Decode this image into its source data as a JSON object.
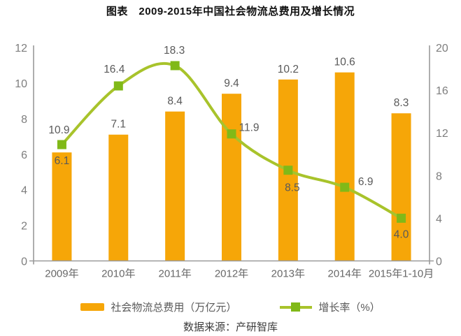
{
  "source": "数据来源：产研智库",
  "colors": {
    "bar": "#F6A608",
    "line": "#A8C32B",
    "marker": "#80B918",
    "axis": "#9A9A9A",
    "tick_label": "#7E7E7E",
    "value_label": "#595959"
  },
  "chart_data": {
    "type": "bar",
    "title": "图表　2009-2015年中国社会物流总费用及增长情况",
    "categories": [
      "2009年",
      "2010年",
      "2011年",
      "2012年",
      "2013年",
      "2014年",
      "2015年1-10月"
    ],
    "series": [
      {
        "name": "社会物流总费用（万亿元）",
        "type": "bar",
        "axis": "left",
        "color": "#F6A608",
        "values": [
          6.1,
          7.1,
          8.4,
          9.4,
          10.2,
          10.6,
          8.3
        ],
        "label_positions": [
          "inside",
          "above",
          "above",
          "above",
          "above",
          "above",
          "above"
        ]
      },
      {
        "name": "增长率（%）",
        "type": "line",
        "axis": "right",
        "color": "#A8C32B",
        "marker_color": "#80B918",
        "values": [
          10.9,
          16.4,
          18.3,
          11.9,
          8.5,
          6.9,
          4.0
        ],
        "label_offsets": [
          {
            "dx": -4,
            "dy": -21
          },
          {
            "dx": -6,
            "dy": -24
          },
          {
            "dx": -1,
            "dy": -22
          },
          {
            "dx": 25,
            "dy": -9
          },
          {
            "dx": 6,
            "dy": 25
          },
          {
            "dx": 30,
            "dy": -8
          },
          {
            "dx": 0,
            "dy": 23
          }
        ]
      }
    ],
    "left_axis": {
      "min": 0,
      "max": 12,
      "ticks": [
        0,
        2,
        4,
        6,
        8,
        10,
        12
      ]
    },
    "right_axis": {
      "min": 0,
      "max": 20,
      "ticks": [
        0,
        4,
        8,
        12,
        16,
        20
      ]
    },
    "grid": false,
    "legend_position": "bottom"
  }
}
